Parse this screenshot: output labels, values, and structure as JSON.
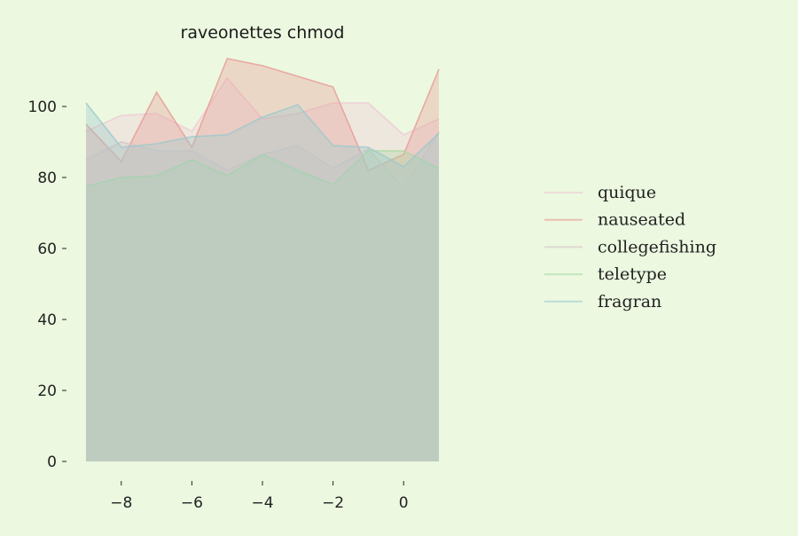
{
  "chart_data": {
    "type": "area",
    "title": "raveonettes chmod",
    "xlabel": "",
    "ylabel": "",
    "x": [
      -9,
      -8,
      -7,
      -6,
      -5,
      -4,
      -3,
      -2,
      -1,
      0,
      1
    ],
    "xlim": [
      -9,
      1
    ],
    "ylim": [
      0,
      115
    ],
    "xticks": [
      -8,
      -6,
      -4,
      -2,
      0
    ],
    "xtick_labels": [
      "−8",
      "−6",
      "−4",
      "−2",
      "0"
    ],
    "yticks": [
      0,
      20,
      40,
      60,
      80,
      100
    ],
    "ytick_labels": [
      "0",
      "20",
      "40",
      "60",
      "80",
      "100"
    ],
    "grid": false,
    "legend_position": "right",
    "series": [
      {
        "name": "quique",
        "color": "#f0c8d6",
        "values": [
          93,
          97.5,
          98,
          93,
          108,
          96.5,
          98,
          101,
          101,
          92,
          96.5
        ]
      },
      {
        "name": "nauseated",
        "color": "#e89a94",
        "values": [
          95,
          84.5,
          104,
          88.5,
          113.5,
          111.5,
          108.5,
          105.5,
          82,
          86.5,
          110.5
        ]
      },
      {
        "name": "collegefishing",
        "color": "#d4c4c4",
        "values": [
          85,
          90,
          87.5,
          87.5,
          82,
          86.5,
          89,
          82.5,
          88,
          77,
          93
        ]
      },
      {
        "name": "teletype",
        "color": "#a8d8a0",
        "values": [
          77.5,
          80,
          80.5,
          85,
          80.5,
          86.5,
          82,
          78,
          87.5,
          87.5,
          82.5
        ]
      },
      {
        "name": "fragran",
        "color": "#9cc8cc",
        "values": [
          101,
          88.5,
          89.5,
          91.5,
          92,
          97,
          100.5,
          89,
          88.5,
          83,
          92.5
        ]
      }
    ]
  }
}
